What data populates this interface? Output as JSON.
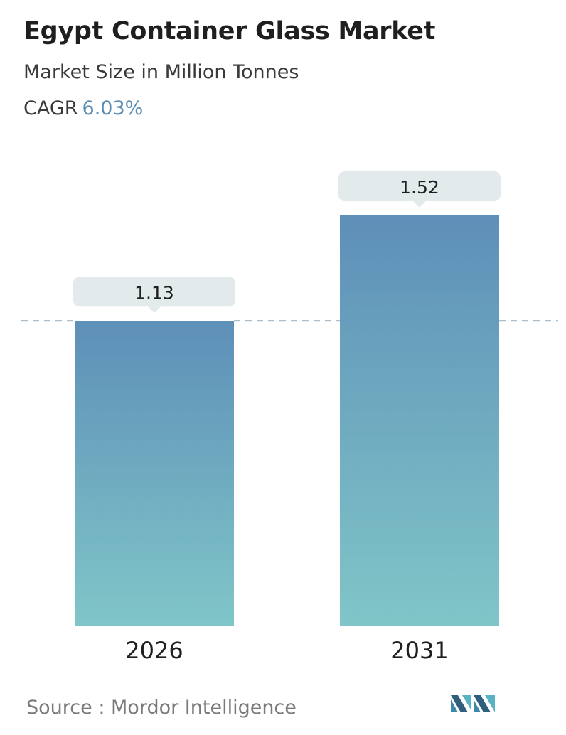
{
  "header": {
    "title": "Egypt Container Glass Market",
    "subtitle": "Market Size in Million Tonnes",
    "cagr_label": "CAGR",
    "cagr_value": "6.03%"
  },
  "chart_data": {
    "type": "bar",
    "title": "Egypt Container Glass Market",
    "subtitle": "Market Size in Million Tonnes",
    "categories": [
      "2026",
      "2031"
    ],
    "values": [
      1.13,
      1.52
    ],
    "value_labels": [
      "1.13",
      "1.52"
    ],
    "ylim": [
      0,
      1.52
    ],
    "grid": false,
    "reference_line": 1.13,
    "colors": {
      "bar_top": "#5e8fb8",
      "bar_bottom": "#80c6c8",
      "label_bg": "#e2eaec",
      "dash": "#5a7d96",
      "text": "#1f1f1f"
    }
  },
  "footer": {
    "source_label": "Source :",
    "source_value": "Mordor Intelligence",
    "logo_icon": "mordor-intelligence-logo-icon"
  }
}
